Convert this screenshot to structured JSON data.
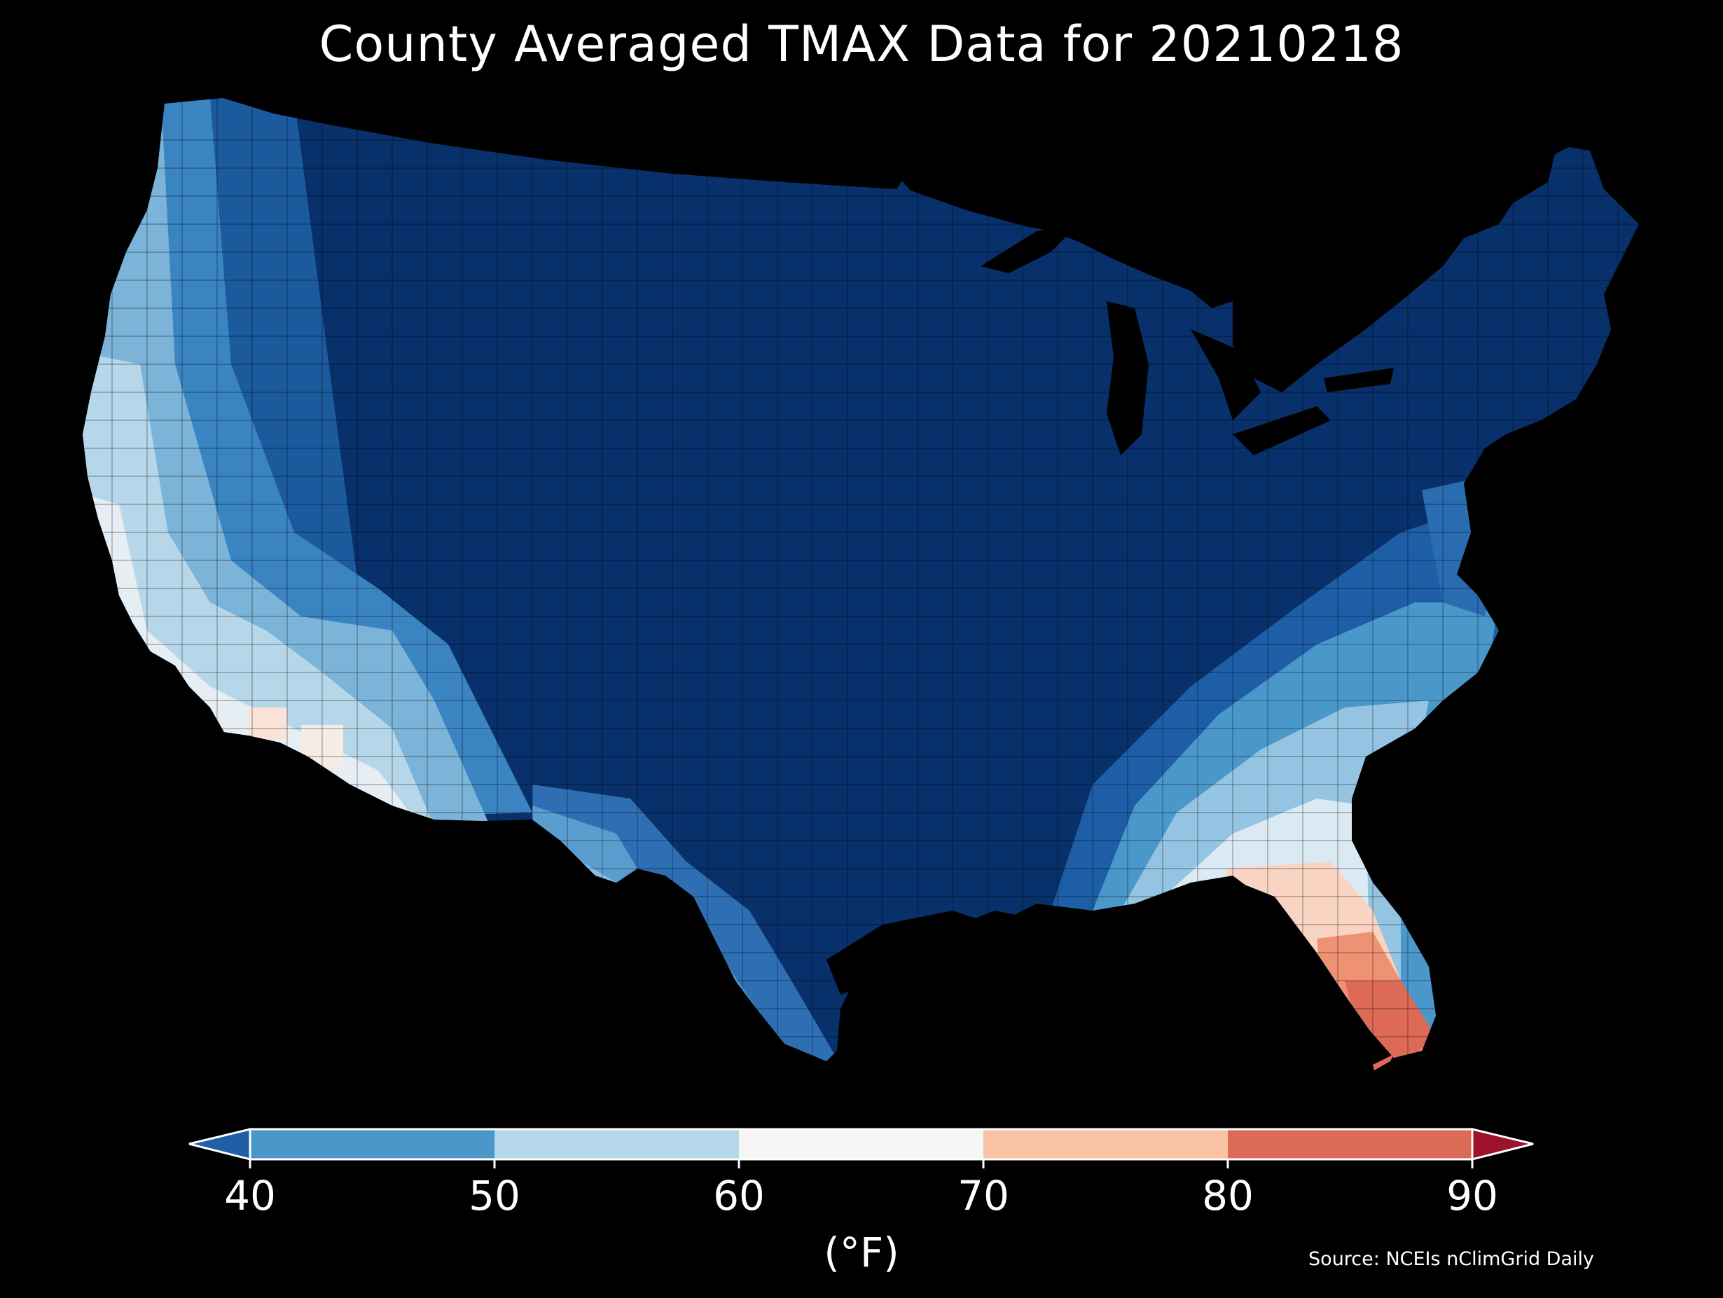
{
  "title": "County Averaged TMAX Data for 20210218",
  "colorbar": {
    "ticks": [
      "40",
      "50",
      "60",
      "70",
      "80",
      "90"
    ],
    "unit": "(°F)",
    "bins": [
      {
        "from": null,
        "to": 40,
        "color": "#1f5fa8"
      },
      {
        "from": 40,
        "to": 50,
        "color": "#4a98c9"
      },
      {
        "from": 50,
        "to": 60,
        "color": "#b6d7ea"
      },
      {
        "from": 60,
        "to": 70,
        "color": "#f6f6f6"
      },
      {
        "from": 70,
        "to": 80,
        "color": "#fac3a6"
      },
      {
        "from": 80,
        "to": 90,
        "color": "#dc6a57"
      },
      {
        "from": 90,
        "to": null,
        "color": "#9d1229"
      }
    ]
  },
  "source": "Source: NCEIs nClimGrid Daily",
  "map": {
    "subject": "Contiguous United States counties",
    "colors": {
      "background": "#000000",
      "coldest": "#08306b",
      "cold": "#1c5a9e",
      "cool": "#4a98c9",
      "mild": "#b6d7ea",
      "neutral": "#f4f1f0",
      "warm": "#fac3a6",
      "hot": "#dc6a57"
    }
  }
}
